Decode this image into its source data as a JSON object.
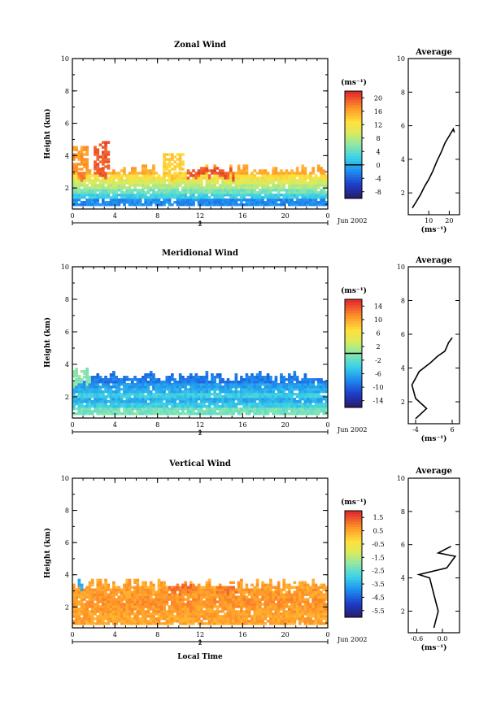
{
  "figure": {
    "date_label": "Jun 2002",
    "day_label": "2",
    "local_time_label": "Local Time",
    "ylabel": "Height (km)",
    "unit_label": "(ms⁻¹)",
    "average_title": "Average"
  },
  "chart_data": [
    {
      "type": "heatmap",
      "title": "Zonal Wind",
      "xlabel": "",
      "ylabel": "Height (km)",
      "x_ticks": [
        "0",
        "4",
        "8",
        "12",
        "16",
        "20",
        "0"
      ],
      "xlim": [
        0,
        24
      ],
      "y_ticks": [
        "2",
        "4",
        "6",
        "8",
        "10"
      ],
      "ylim": [
        0.7,
        10
      ],
      "colorbar_ticks": [
        "20",
        "16",
        "12",
        "8",
        "4",
        "0",
        "-4",
        "-8"
      ],
      "colorbar_range": [
        -10,
        22
      ],
      "contour_level": 0,
      "data_top_km": 3.1,
      "bands": [
        [
          1.0,
          -2
        ],
        [
          1.25,
          2
        ],
        [
          1.55,
          5
        ],
        [
          1.85,
          8
        ],
        [
          2.15,
          10
        ],
        [
          2.45,
          13
        ],
        [
          2.75,
          16
        ]
      ],
      "patches": [
        [
          0.0,
          1.4,
          4.5,
          17
        ],
        [
          2.0,
          3.3,
          4.8,
          20
        ],
        [
          9.2,
          15.0,
          3.2,
          20
        ],
        [
          8.5,
          10.5,
          4.1,
          14
        ],
        [
          0.0,
          1.0,
          3.5,
          18
        ]
      ],
      "profile": {
        "title": "Average",
        "xlabel": "(ms⁻¹)",
        "x_ticks": [
          "10",
          "20"
        ],
        "xlim": [
          0,
          25
        ],
        "y_ticks": [
          "2",
          "4",
          "6",
          "8",
          "10"
        ],
        "ylim": [
          0.7,
          10
        ],
        "points": [
          [
            2,
            1.1
          ],
          [
            4,
            1.5
          ],
          [
            6,
            1.9
          ],
          [
            8,
            2.4
          ],
          [
            10,
            2.8
          ],
          [
            12,
            3.3
          ],
          [
            14,
            3.9
          ],
          [
            16,
            4.4
          ],
          [
            18,
            5.0
          ],
          [
            20,
            5.4
          ],
          [
            22,
            5.8
          ],
          [
            22.5,
            5.6
          ]
        ]
      }
    },
    {
      "type": "heatmap",
      "title": "Meridional Wind",
      "xlabel": "",
      "ylabel": "Height (km)",
      "x_ticks": [
        "0",
        "4",
        "8",
        "12",
        "16",
        "20",
        "0"
      ],
      "xlim": [
        0,
        24
      ],
      "y_ticks": [
        "2",
        "4",
        "6",
        "8",
        "10"
      ],
      "ylim": [
        0.7,
        10
      ],
      "colorbar_ticks": [
        "14",
        "10",
        "6",
        "2",
        "-2",
        "-6",
        "-10",
        "-14"
      ],
      "colorbar_range": [
        -16,
        16
      ],
      "contour_level": 0,
      "data_top_km": 3.2,
      "bands": [
        [
          1.0,
          -1
        ],
        [
          1.25,
          -4
        ],
        [
          1.55,
          -6
        ],
        [
          1.85,
          -4
        ],
        [
          2.15,
          -6
        ],
        [
          2.45,
          -7
        ],
        [
          2.75,
          -9
        ]
      ],
      "patches": [
        [
          0.0,
          2.0,
          1.6,
          4
        ],
        [
          11.0,
          16.0,
          1.7,
          3
        ],
        [
          17.5,
          24.0,
          1.8,
          2
        ],
        [
          0.0,
          1.5,
          3.8,
          0
        ]
      ],
      "profile": {
        "title": "Average",
        "xlabel": "(ms⁻¹)",
        "x_ticks": [
          "-4",
          "6"
        ],
        "xlim": [
          -6,
          8
        ],
        "y_ticks": [
          "2",
          "4",
          "6",
          "8",
          "10"
        ],
        "ylim": [
          0.7,
          10
        ],
        "points": [
          [
            -4,
            1.0
          ],
          [
            -1,
            1.6
          ],
          [
            -4,
            2.2
          ],
          [
            -5,
            3.0
          ],
          [
            -3,
            3.8
          ],
          [
            0,
            4.3
          ],
          [
            2,
            4.7
          ],
          [
            4,
            5.0
          ],
          [
            5,
            5.5
          ],
          [
            6,
            5.8
          ]
        ]
      }
    },
    {
      "type": "heatmap",
      "title": "Vertical Wind",
      "xlabel": "Local Time",
      "ylabel": "Height (km)",
      "x_ticks": [
        "0",
        "4",
        "8",
        "12",
        "16",
        "20",
        "0"
      ],
      "xlim": [
        0,
        24
      ],
      "y_ticks": [
        "2",
        "4",
        "6",
        "8",
        "10"
      ],
      "ylim": [
        0.7,
        10
      ],
      "colorbar_ticks": [
        "1.5",
        "0.5",
        "-0.5",
        "-1.5",
        "-2.5",
        "-3.5",
        "-4.5",
        "-5.5"
      ],
      "colorbar_range": [
        -6,
        2
      ],
      "contour_level": null,
      "data_top_km": 3.4,
      "bands": [
        [
          1.0,
          0.6
        ],
        [
          1.5,
          0.7
        ],
        [
          2.0,
          0.8
        ],
        [
          2.5,
          0.7
        ],
        [
          3.0,
          0.6
        ]
      ],
      "patches": [
        [
          0.4,
          0.8,
          3.6,
          -3.5
        ],
        [
          9.0,
          11.5,
          3.3,
          1.2
        ],
        [
          13.5,
          15.5,
          3.3,
          1.1
        ]
      ],
      "profile": {
        "title": "Average",
        "xlabel": "(ms⁻¹)",
        "x_ticks": [
          "-0.6",
          "0.0"
        ],
        "xlim": [
          -0.8,
          0.4
        ],
        "y_ticks": [
          "2",
          "4",
          "6",
          "8",
          "10"
        ],
        "ylim": [
          0.7,
          10
        ],
        "points": [
          [
            -0.2,
            1.0
          ],
          [
            -0.1,
            2.0
          ],
          [
            -0.2,
            3.0
          ],
          [
            -0.3,
            4.0
          ],
          [
            -0.55,
            4.2
          ],
          [
            0.1,
            4.6
          ],
          [
            0.3,
            5.3
          ],
          [
            -0.1,
            5.5
          ],
          [
            0.2,
            5.9
          ]
        ]
      }
    }
  ]
}
